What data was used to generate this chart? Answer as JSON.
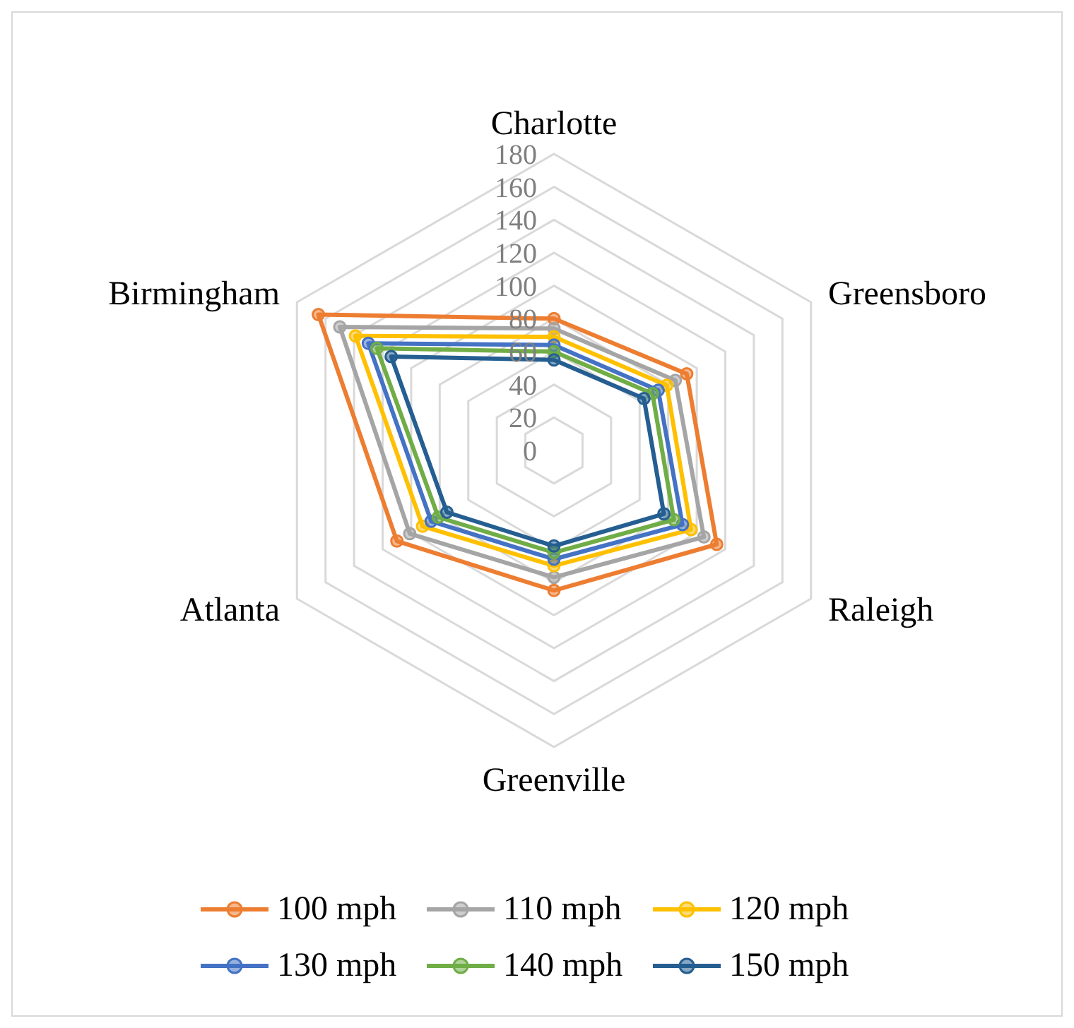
{
  "chart_data": {
    "type": "radar",
    "categories": [
      "Charlotte",
      "Greensboro",
      "Raleigh",
      "Greenville",
      "Atlanta",
      "Birmingham"
    ],
    "series": [
      {
        "name": "100 mph",
        "color": "#ed7d31",
        "values": [
          80,
          93,
          114,
          85,
          110,
          165
        ]
      },
      {
        "name": "110 mph",
        "color": "#a5a5a5",
        "values": [
          74,
          85,
          105,
          77,
          101,
          150
        ]
      },
      {
        "name": "120 mph",
        "color": "#ffc000",
        "values": [
          69,
          79,
          96,
          70,
          92,
          139
        ]
      },
      {
        "name": "130 mph",
        "color": "#4472c4",
        "values": [
          64,
          73,
          90,
          66,
          86,
          130
        ]
      },
      {
        "name": "140 mph",
        "color": "#70ad47",
        "values": [
          60,
          69,
          84,
          62,
          81,
          124
        ]
      },
      {
        "name": "150 mph",
        "color": "#255e91",
        "values": [
          55,
          63,
          77,
          58,
          75,
          114
        ]
      }
    ],
    "ylim": [
      0,
      180
    ],
    "yticks": [
      0,
      20,
      40,
      60,
      80,
      100,
      120,
      140,
      160,
      180
    ],
    "grid": true,
    "legend": "bottom",
    "marker": "circle",
    "line_style": "solid"
  }
}
